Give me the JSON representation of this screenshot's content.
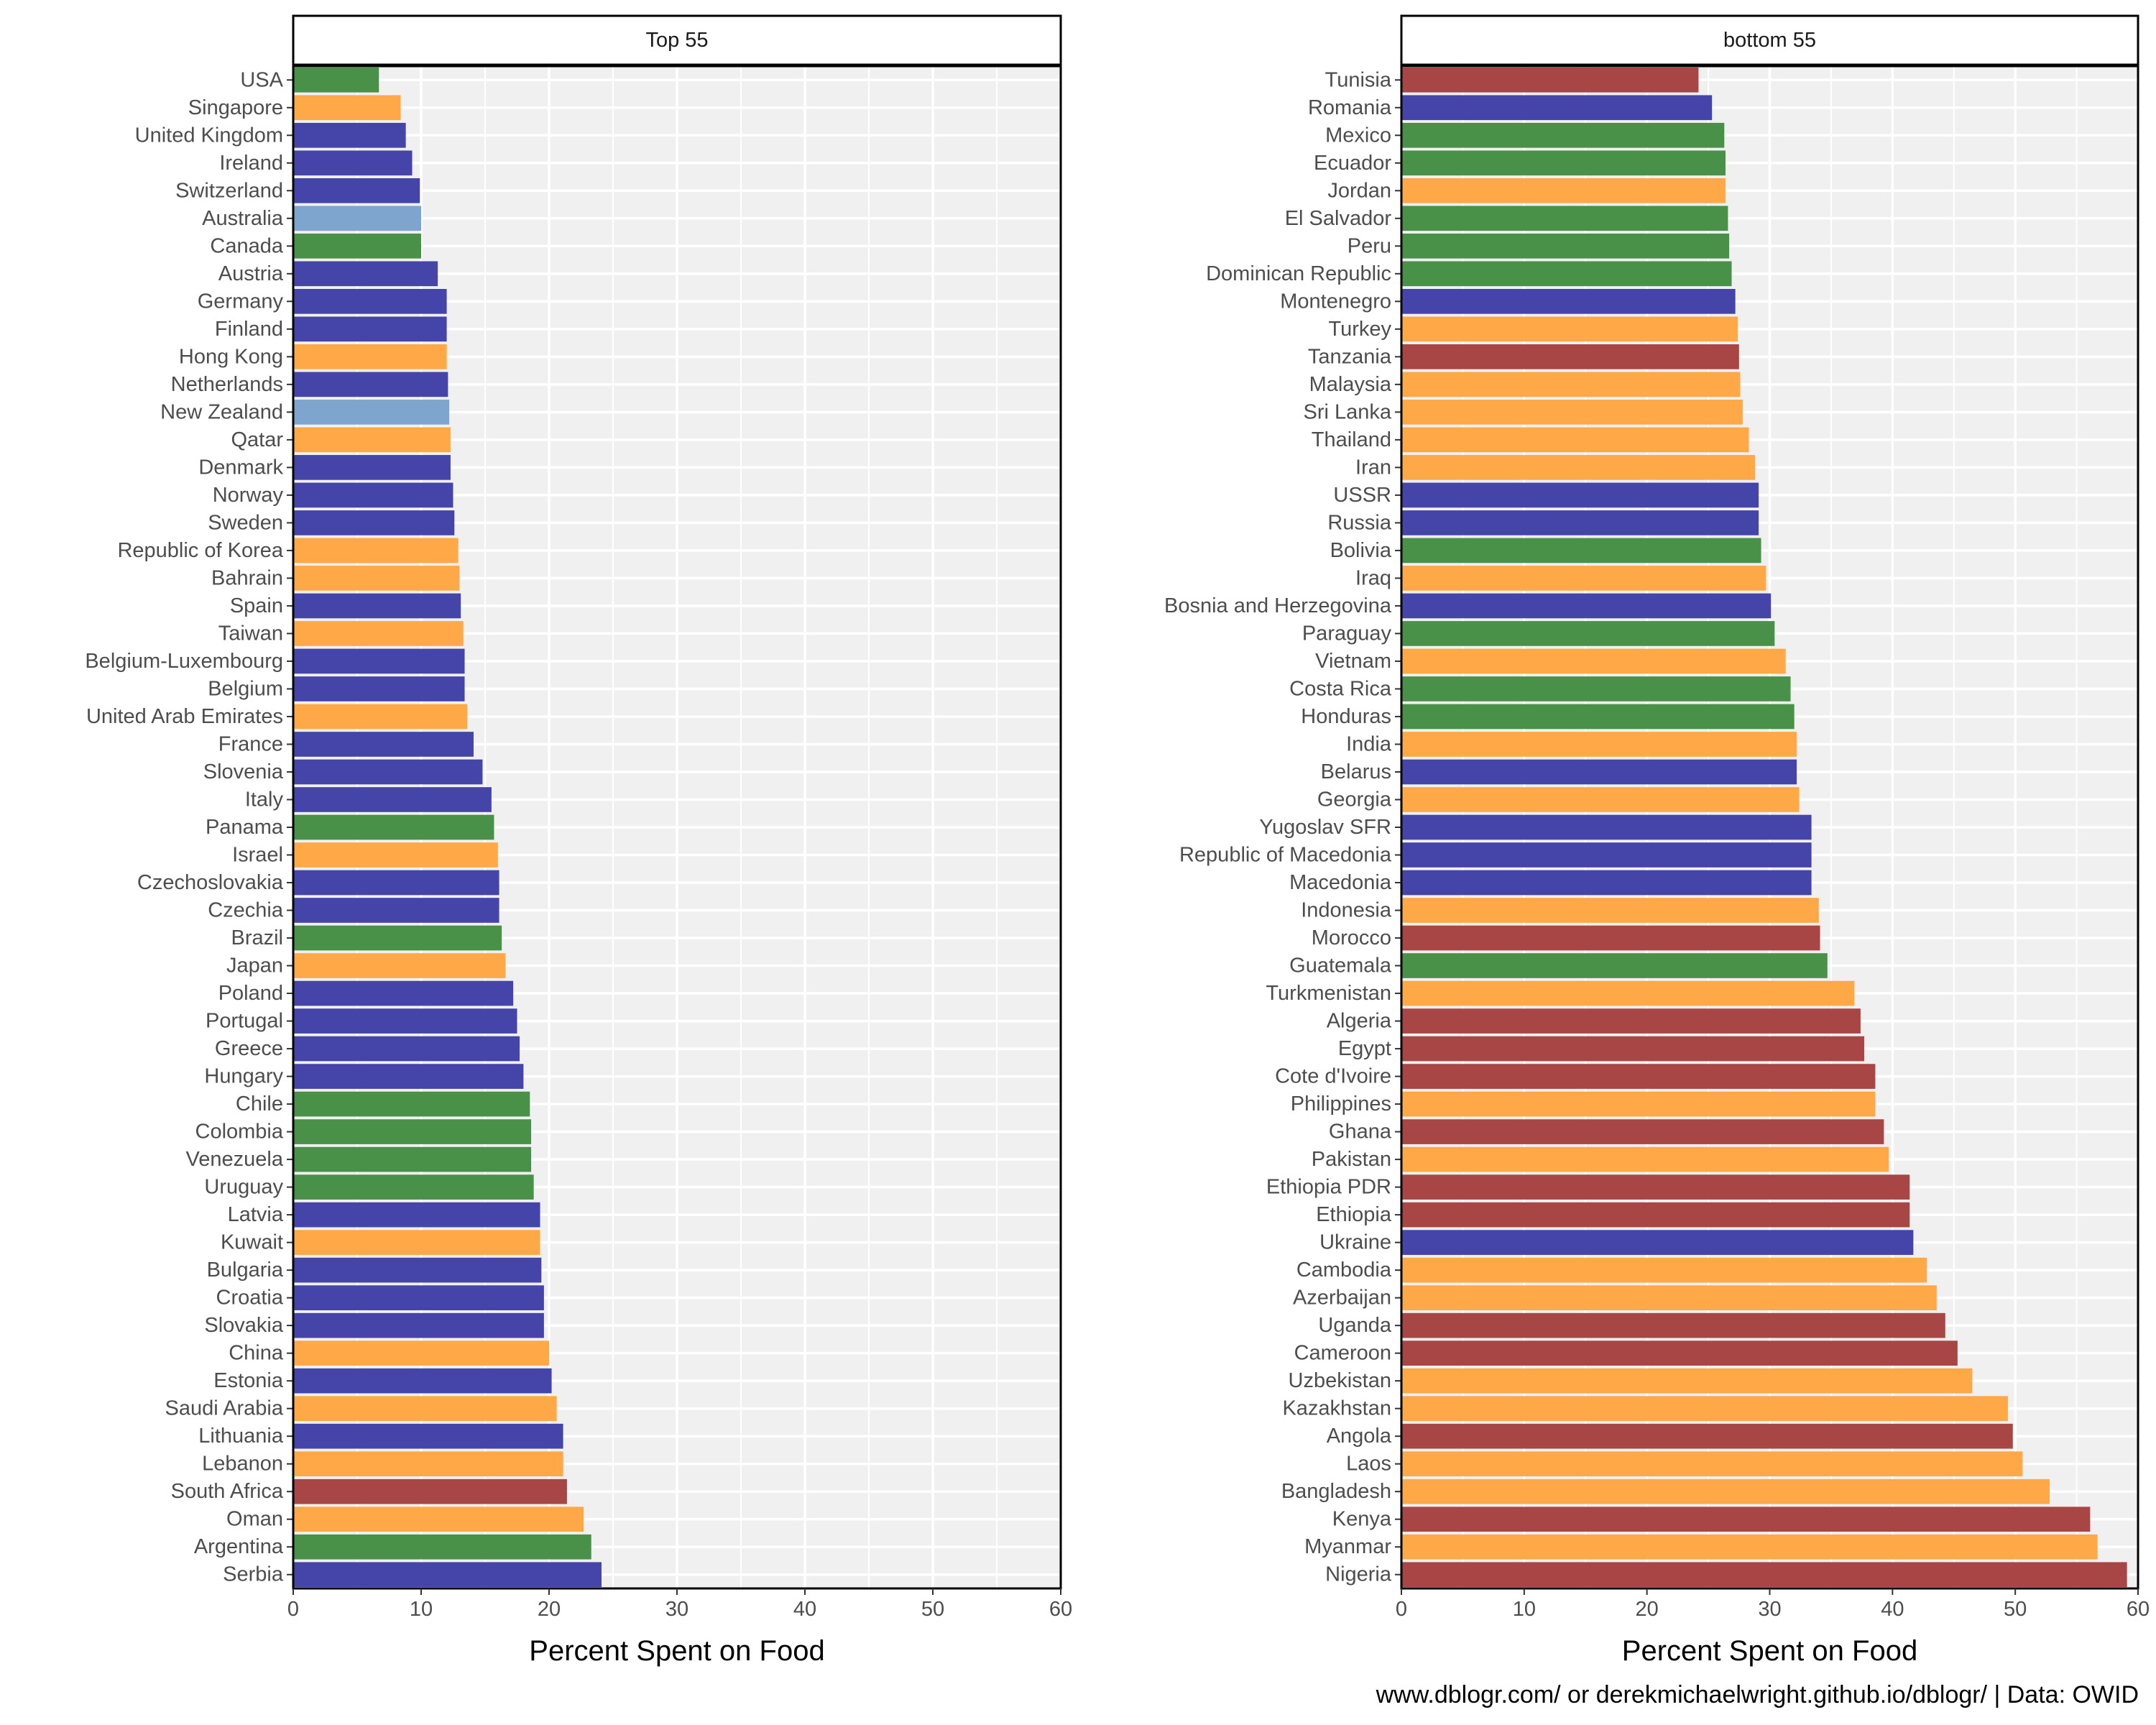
{
  "caption": "www.dblogr.com/ or derekmichaelwright.github.io/dblogr/ | Data: OWID",
  "colors": {
    "blue": "#3B3BA4",
    "orange": "#FFA33D",
    "green": "#3F8A3F",
    "red": "#A33B3B",
    "lightblue": "#77A0CB",
    "panel_bg": "#F0F0F0",
    "grid": "#FFFFFF"
  },
  "chart_data": [
    {
      "type": "bar",
      "orientation": "horizontal",
      "strip_title": "Top 55",
      "xlabel": "Percent Spent on Food",
      "xlim": [
        0,
        60
      ],
      "xticks": [
        "0",
        "10",
        "20",
        "30",
        "40",
        "50",
        "60"
      ],
      "categories": [
        "USA",
        "Singapore",
        "United Kingdom",
        "Ireland",
        "Switzerland",
        "Australia",
        "Canada",
        "Austria",
        "Germany",
        "Finland",
        "Hong Kong",
        "Netherlands",
        "New Zealand",
        "Qatar",
        "Denmark",
        "Norway",
        "Sweden",
        "Republic of Korea",
        "Bahrain",
        "Spain",
        "Taiwan",
        "Belgium-Luxembourg",
        "Belgium",
        "United Arab Emirates",
        "France",
        "Slovenia",
        "Italy",
        "Panama",
        "Israel",
        "Czechoslovakia",
        "Czechia",
        "Brazil",
        "Japan",
        "Poland",
        "Portugal",
        "Greece",
        "Hungary",
        "Chile",
        "Colombia",
        "Venezuela",
        "Uruguay",
        "Latvia",
        "Kuwait",
        "Bulgaria",
        "Croatia",
        "Slovakia",
        "China",
        "Estonia",
        "Saudi Arabia",
        "Lithuania",
        "Lebanon",
        "South Africa",
        "Oman",
        "Argentina",
        "Serbia"
      ],
      "values": [
        6.7,
        8.4,
        8.8,
        9.3,
        9.9,
        10.0,
        10.0,
        11.3,
        12.0,
        12.0,
        12.0,
        12.1,
        12.2,
        12.3,
        12.3,
        12.5,
        12.6,
        12.9,
        13.0,
        13.1,
        13.3,
        13.4,
        13.4,
        13.6,
        14.1,
        14.8,
        15.5,
        15.7,
        16.0,
        16.1,
        16.1,
        16.3,
        16.6,
        17.2,
        17.5,
        17.7,
        18.0,
        18.5,
        18.6,
        18.6,
        18.8,
        19.3,
        19.3,
        19.4,
        19.6,
        19.6,
        20.0,
        20.2,
        20.6,
        21.1,
        21.1,
        21.4,
        22.7,
        23.3,
        24.1
      ],
      "colors": [
        "green",
        "orange",
        "blue",
        "blue",
        "blue",
        "lightblue",
        "green",
        "blue",
        "blue",
        "blue",
        "orange",
        "blue",
        "lightblue",
        "orange",
        "blue",
        "blue",
        "blue",
        "orange",
        "orange",
        "blue",
        "orange",
        "blue",
        "blue",
        "orange",
        "blue",
        "blue",
        "blue",
        "green",
        "orange",
        "blue",
        "blue",
        "green",
        "orange",
        "blue",
        "blue",
        "blue",
        "blue",
        "green",
        "green",
        "green",
        "green",
        "blue",
        "orange",
        "blue",
        "blue",
        "blue",
        "orange",
        "blue",
        "orange",
        "blue",
        "orange",
        "red",
        "orange",
        "green",
        "blue"
      ]
    },
    {
      "type": "bar",
      "orientation": "horizontal",
      "strip_title": "bottom 55",
      "xlabel": "Percent Spent on Food",
      "xlim": [
        0,
        60
      ],
      "xticks": [
        "0",
        "10",
        "20",
        "30",
        "40",
        "50",
        "60"
      ],
      "categories": [
        "Tunisia",
        "Romania",
        "Mexico",
        "Ecuador",
        "Jordan",
        "El Salvador",
        "Peru",
        "Dominican Republic",
        "Montenegro",
        "Turkey",
        "Tanzania",
        "Malaysia",
        "Sri Lanka",
        "Thailand",
        "Iran",
        "USSR",
        "Russia",
        "Bolivia",
        "Iraq",
        "Bosnia and Herzegovina",
        "Paraguay",
        "Vietnam",
        "Costa Rica",
        "Honduras",
        "India",
        "Belarus",
        "Georgia",
        "Yugoslav SFR",
        "Republic of Macedonia",
        "Macedonia",
        "Indonesia",
        "Morocco",
        "Guatemala",
        "Turkmenistan",
        "Algeria",
        "Egypt",
        "Cote d'Ivoire",
        "Philippines",
        "Ghana",
        "Pakistan",
        "Ethiopia PDR",
        "Ethiopia",
        "Ukraine",
        "Cambodia",
        "Azerbaijan",
        "Uganda",
        "Cameroon",
        "Uzbekistan",
        "Kazakhstan",
        "Angola",
        "Laos",
        "Bangladesh",
        "Kenya",
        "Myanmar",
        "Nigeria"
      ],
      "values": [
        24.2,
        25.3,
        26.3,
        26.4,
        26.4,
        26.6,
        26.7,
        26.9,
        27.2,
        27.4,
        27.5,
        27.6,
        27.8,
        28.3,
        28.8,
        29.1,
        29.1,
        29.3,
        29.7,
        30.1,
        30.4,
        31.3,
        31.7,
        32.0,
        32.2,
        32.2,
        32.4,
        33.4,
        33.4,
        33.4,
        34.0,
        34.1,
        34.7,
        36.9,
        37.4,
        37.7,
        38.6,
        38.6,
        39.3,
        39.7,
        41.4,
        41.4,
        41.7,
        42.8,
        43.6,
        44.3,
        45.3,
        46.5,
        49.4,
        49.8,
        50.6,
        52.8,
        56.1,
        56.7,
        59.1
      ],
      "colors": [
        "red",
        "blue",
        "green",
        "green",
        "orange",
        "green",
        "green",
        "green",
        "blue",
        "orange",
        "red",
        "orange",
        "orange",
        "orange",
        "orange",
        "blue",
        "blue",
        "green",
        "orange",
        "blue",
        "green",
        "orange",
        "green",
        "green",
        "orange",
        "blue",
        "orange",
        "blue",
        "blue",
        "blue",
        "orange",
        "red",
        "green",
        "orange",
        "red",
        "red",
        "red",
        "orange",
        "red",
        "orange",
        "red",
        "red",
        "blue",
        "orange",
        "orange",
        "red",
        "red",
        "orange",
        "orange",
        "red",
        "orange",
        "orange",
        "red",
        "orange",
        "red"
      ]
    }
  ]
}
